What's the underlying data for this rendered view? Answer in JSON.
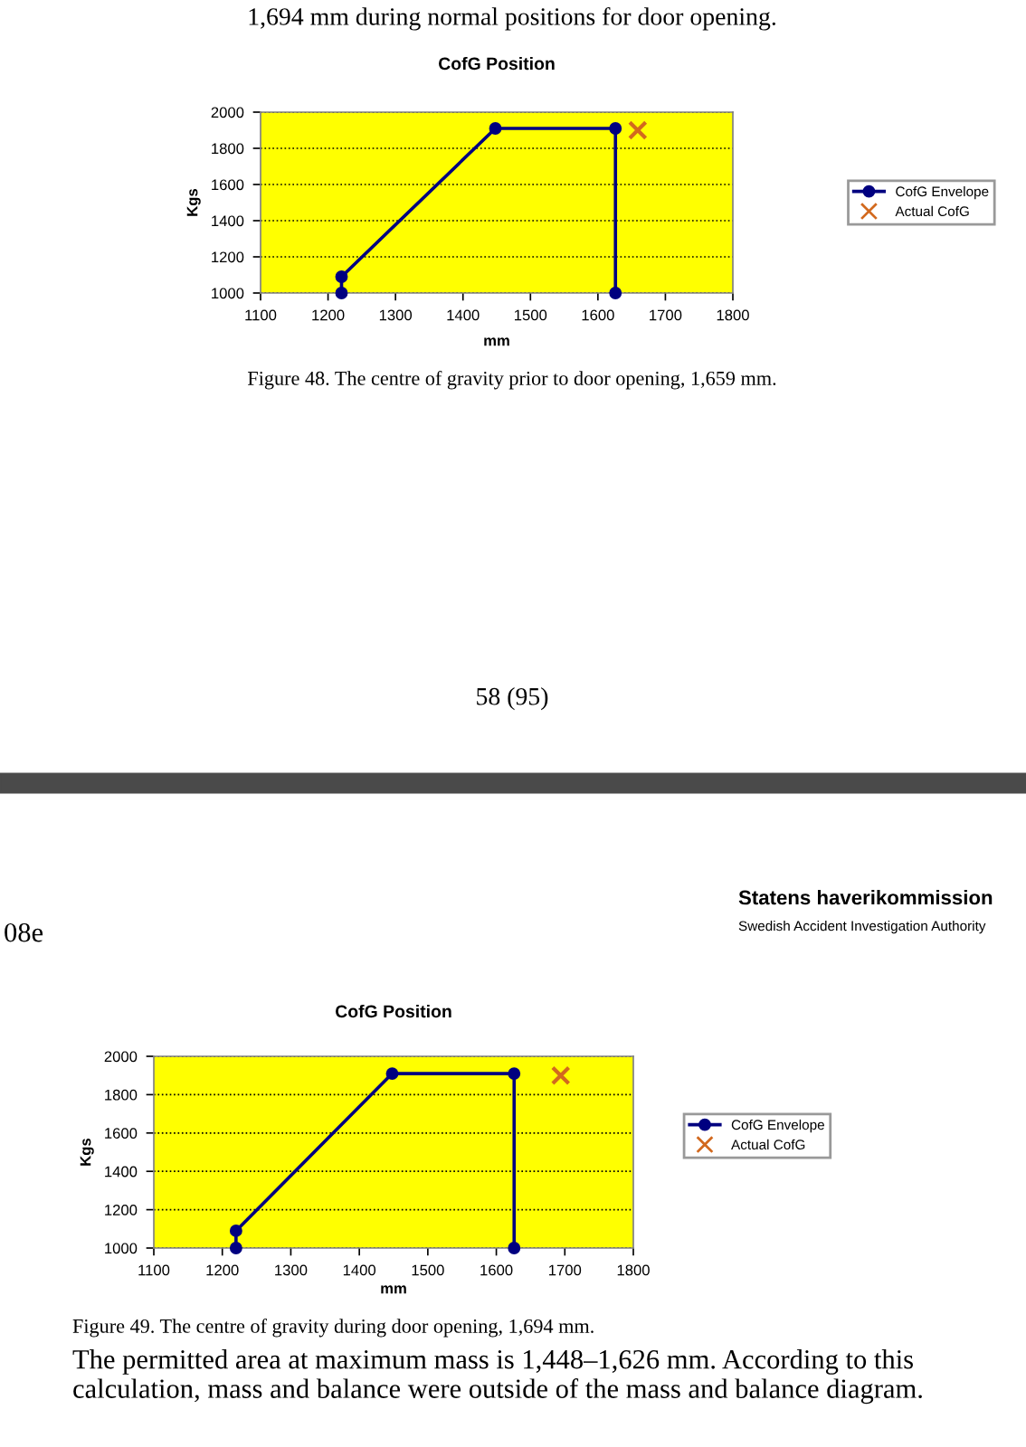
{
  "chart_data": [
    {
      "type": "line",
      "title": "CofG Position",
      "xlabel": "mm",
      "ylabel": "Kgs",
      "xlim": [
        1100,
        1800
      ],
      "xticks": [
        1100,
        1200,
        1300,
        1400,
        1500,
        1600,
        1700,
        1800
      ],
      "ylim": [
        1000,
        2000
      ],
      "yticks": [
        1000,
        1200,
        1400,
        1600,
        1800,
        2000
      ],
      "grid": "y",
      "legend": "right",
      "series": [
        {
          "name": "CofG Envelope",
          "color": "#000080",
          "marker": "circle",
          "x": [
            1220,
            1220,
            1448,
            1626,
            1626
          ],
          "values": [
            1000,
            1090,
            1910,
            1910,
            1000
          ]
        },
        {
          "name": "Actual CofG",
          "color": "#d2691e",
          "type": "scatter",
          "marker": "cross",
          "x": [
            1659
          ],
          "values": [
            1900
          ]
        }
      ],
      "annotations": [
        "1,694 mm during normal positions for door opening.",
        "Figure 48. The centre of gravity prior to door opening, 1,659 mm.",
        "58 (95)"
      ]
    },
    {
      "type": "line",
      "title": "CofG Position",
      "xlabel": "mm",
      "ylabel": "Kgs",
      "xlim": [
        1100,
        1800
      ],
      "xticks": [
        1100,
        1200,
        1300,
        1400,
        1500,
        1600,
        1700,
        1800
      ],
      "ylim": [
        1000,
        2000
      ],
      "yticks": [
        1000,
        1200,
        1400,
        1600,
        1800,
        2000
      ],
      "grid": "y",
      "legend": "right",
      "series": [
        {
          "name": "CofG Envelope",
          "color": "#000080",
          "marker": "circle",
          "x": [
            1220,
            1220,
            1448,
            1626,
            1626
          ],
          "values": [
            1000,
            1090,
            1910,
            1910,
            1000
          ]
        },
        {
          "name": "Actual CofG",
          "color": "#d2691e",
          "type": "scatter",
          "marker": "cross",
          "x": [
            1694
          ],
          "values": [
            1900
          ]
        }
      ],
      "annotations": [
        "08e",
        "Statens haverikommission",
        "Swedish Accident Investigation Authority",
        "Figure 49. The centre of gravity during door opening, 1,694 mm.",
        "The permitted area at maximum mass is 1,448–1,626 mm. According to this calculation, mass and balance were outside of the mass and balance diagram."
      ]
    }
  ]
}
